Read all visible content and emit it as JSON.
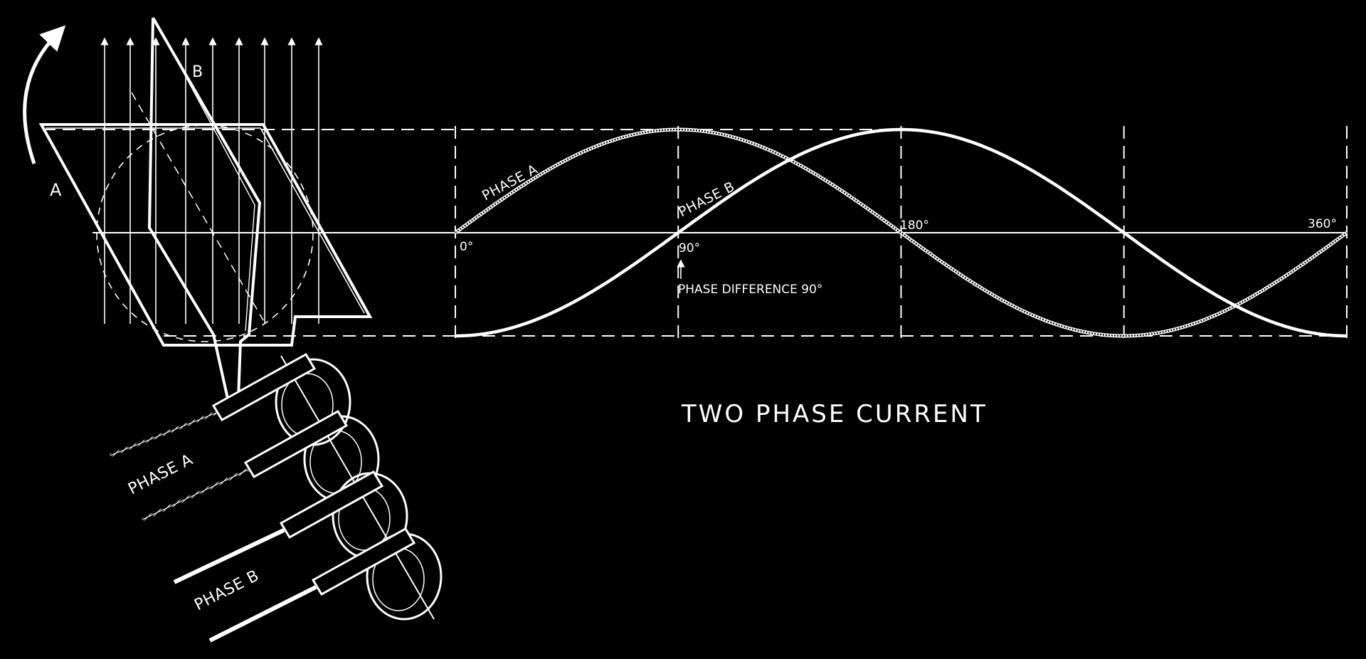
{
  "colors": {
    "background": "#000000",
    "ink": "#ffffff"
  },
  "labels": {
    "coil_a": "A",
    "coil_b": "B",
    "phase_a_curve": "PHASE A",
    "phase_b_curve": "PHASE B",
    "deg_0": "0°",
    "deg_90": "90°",
    "deg_180": "180°",
    "deg_360": "360°",
    "phase_difference": "PHASE DIFFERENCE 90°",
    "title": "TWO PHASE CURRENT",
    "lead_phase_a": "PHASE A",
    "lead_phase_b": "PHASE B"
  },
  "chart_data": {
    "type": "line",
    "title": "TWO PHASE CURRENT",
    "x_unit": "degrees",
    "x_ticks": [
      "0°",
      "90°",
      "180°",
      "360°"
    ],
    "xlim": [
      0,
      360
    ],
    "ylim": [
      -1,
      1
    ],
    "grid": false,
    "series": [
      {
        "name": "PHASE A",
        "function": "sin(x)",
        "style": "hatched",
        "x": [
          0,
          45,
          90,
          135,
          180,
          225,
          270,
          315,
          360
        ],
        "y": [
          0,
          0.71,
          1,
          0.71,
          0,
          -0.71,
          -1,
          -0.71,
          0
        ]
      },
      {
        "name": "PHASE B",
        "function": "-cos(x)",
        "style": "solid",
        "x": [
          0,
          45,
          90,
          135,
          180,
          225,
          270,
          315,
          360
        ],
        "y": [
          -1,
          -0.71,
          0,
          0.71,
          1,
          0.71,
          0,
          -0.71,
          -1
        ]
      }
    ],
    "annotations": [
      "PHASE DIFFERENCE 90°"
    ]
  }
}
